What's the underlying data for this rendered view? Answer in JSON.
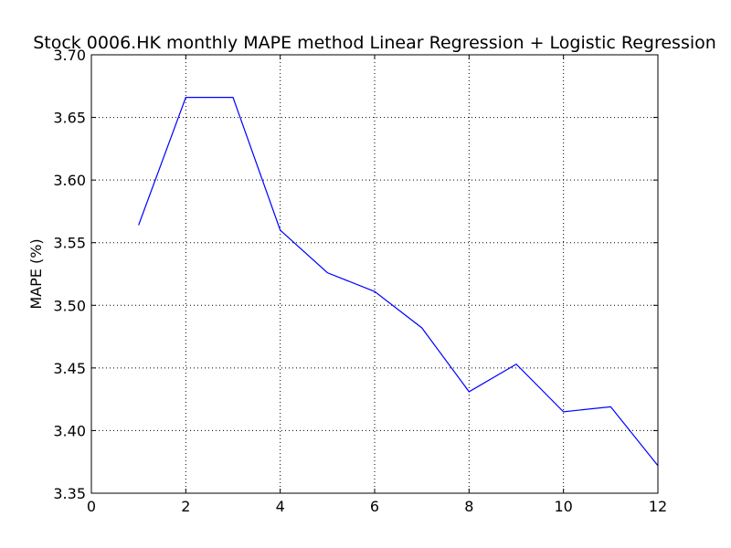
{
  "chart_data": {
    "type": "line",
    "title": "Stock 0006.HK monthly MAPE method Linear Regression + Logistic Regression",
    "xlabel": "",
    "ylabel": "MAPE (%)",
    "xlim": [
      0,
      12
    ],
    "ylim": [
      3.35,
      3.7
    ],
    "xticks": [
      0,
      2,
      4,
      6,
      8,
      10,
      12
    ],
    "yticks": [
      3.35,
      3.4,
      3.45,
      3.5,
      3.55,
      3.6,
      3.65,
      3.7
    ],
    "xtick_labels": [
      "0",
      "2",
      "4",
      "6",
      "8",
      "10",
      "12"
    ],
    "ytick_labels": [
      "3.35",
      "3.40",
      "3.45",
      "3.50",
      "3.55",
      "3.60",
      "3.65",
      "3.70"
    ],
    "grid": true,
    "series": [
      {
        "color": "#0000ff",
        "x": [
          1,
          2,
          3,
          4,
          5,
          6,
          7,
          8,
          9,
          10,
          11,
          12
        ],
        "y": [
          3.564,
          3.666,
          3.666,
          3.56,
          3.526,
          3.511,
          3.482,
          3.431,
          3.453,
          3.415,
          3.419,
          3.372
        ]
      }
    ]
  }
}
